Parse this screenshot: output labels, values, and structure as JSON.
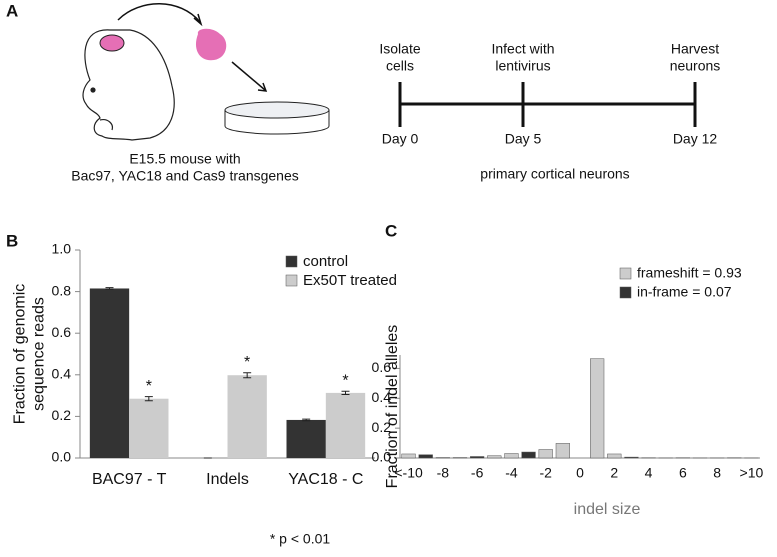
{
  "panel_a": {
    "label": "A",
    "mouse_caption": [
      "E15.5 mouse with",
      "Bac97, YAC18 and Cas9 transgenes"
    ],
    "timeline": [
      {
        "event": [
          "Isolate",
          "cells"
        ],
        "day": "Day 0"
      },
      {
        "event": [
          "Infect with",
          "lentivirus"
        ],
        "day": "Day 5"
      },
      {
        "event": [
          "Harvest",
          "neurons"
        ],
        "day": "Day 12"
      }
    ],
    "timeline_caption": "primary cortical neurons"
  },
  "chart_data": [
    {
      "type": "bar",
      "label": "B",
      "ylabel": [
        "Fraction of genomic",
        "sequence reads"
      ],
      "categories": [
        "BAC97 - T",
        "Indels",
        "YAC18 - C"
      ],
      "series": [
        {
          "name": "control",
          "color": "#333333",
          "values": [
            0.815,
            0.0,
            0.183
          ],
          "errors": [
            0.004,
            0.0,
            0.004
          ]
        },
        {
          "name": "Ex50T treated",
          "color": "#cccccc",
          "values": [
            0.285,
            0.398,
            0.313
          ],
          "errors": [
            0.01,
            0.012,
            0.008
          ],
          "annotations": [
            "*",
            "*",
            "*"
          ]
        }
      ],
      "ylim": [
        0,
        1
      ],
      "yticks": [
        {
          "value": 0,
          "label": "0.0"
        },
        0.2,
        0.4,
        0.6,
        0.8,
        {
          "value": 1,
          "label": "1.0"
        }
      ],
      "legend": "top-right",
      "footnote": "* p < 0.01"
    },
    {
      "type": "bar",
      "label": "C",
      "ylabel": [
        "Fraction of indel alleles"
      ],
      "xlabel": "indel size",
      "categories": [
        "<-10",
        null,
        "-8",
        null,
        "-6",
        null,
        "-4",
        null,
        "-2",
        null,
        "0",
        null,
        "2",
        null,
        "4",
        null,
        "6",
        null,
        "8",
        null,
        ">10"
      ],
      "series": [
        {
          "name": "frameshift = 0.93",
          "color": "#cccccc",
          "values": [
            0.027,
            null,
            0.003,
            0.003,
            null,
            0.015,
            0.03,
            null,
            0.057,
            0.098,
            null,
            0.665,
            0.027,
            null,
            0.002,
            0.001,
            null,
            0.001,
            0.001,
            null,
            0.001
          ]
        },
        {
          "name": "in-frame = 0.07",
          "color": "#333333",
          "values": [
            null,
            0.022,
            null,
            null,
            0.01,
            null,
            null,
            0.04,
            null,
            null,
            null,
            null,
            null,
            0.006,
            null,
            null,
            0.002,
            null,
            null,
            0.002,
            null
          ]
        }
      ],
      "ylim": [
        0,
        0.69
      ],
      "yticks": [
        {
          "value": 0,
          "label": "0.0"
        },
        0.2,
        0.4,
        0.6
      ],
      "legend": "top-right"
    }
  ]
}
